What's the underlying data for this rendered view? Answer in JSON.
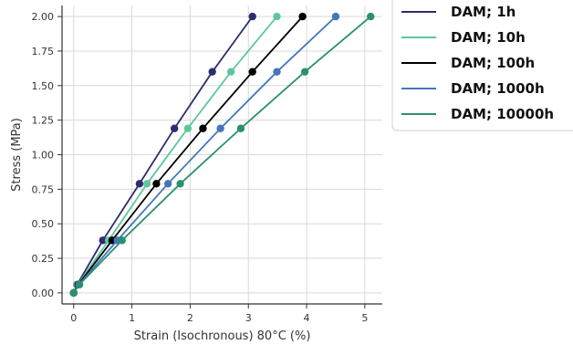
{
  "chart_data": {
    "type": "line",
    "title": "",
    "xlabel": "Strain (Isochronous) 80°C (%)",
    "ylabel": "Stress (MPa)",
    "xlim": [
      -0.2,
      5.3
    ],
    "ylim": [
      -0.08,
      2.08
    ],
    "xticks": [
      "0",
      "1",
      "2",
      "3",
      "4",
      "5"
    ],
    "yticks": [
      "0.00",
      "0.25",
      "0.50",
      "0.75",
      "1.00",
      "1.25",
      "1.50",
      "1.75",
      "2.00"
    ],
    "grid": true,
    "legend_position": "right",
    "series": [
      {
        "name": "DAM; 1h",
        "color": "#2e2c6e",
        "x": [
          0,
          0.06,
          0.5,
          1.13,
          1.73,
          2.38,
          3.07
        ],
        "y": [
          0,
          0.06,
          0.38,
          0.79,
          1.19,
          1.6,
          2.0
        ]
      },
      {
        "name": "DAM; 10h",
        "color": "#5ec79a",
        "x": [
          0,
          0.07,
          0.6,
          1.26,
          1.96,
          2.7,
          3.49
        ],
        "y": [
          0,
          0.06,
          0.38,
          0.79,
          1.19,
          1.6,
          2.0
        ]
      },
      {
        "name": "DAM; 100h",
        "color": "#000000",
        "x": [
          0,
          0.08,
          0.66,
          1.42,
          2.22,
          3.07,
          3.93
        ],
        "y": [
          0,
          0.06,
          0.38,
          0.79,
          1.19,
          1.6,
          2.0
        ]
      },
      {
        "name": "DAM; 1000h",
        "color": "#4376bd",
        "x": [
          0,
          0.09,
          0.75,
          1.62,
          2.52,
          3.49,
          4.5
        ],
        "y": [
          0,
          0.06,
          0.38,
          0.79,
          1.19,
          1.6,
          2.0
        ]
      },
      {
        "name": "DAM; 10000h",
        "color": "#2a9070",
        "x": [
          0,
          0.1,
          0.83,
          1.83,
          2.87,
          3.97,
          5.1
        ],
        "y": [
          0,
          0.06,
          0.38,
          0.79,
          1.19,
          1.6,
          2.0
        ]
      }
    ]
  }
}
